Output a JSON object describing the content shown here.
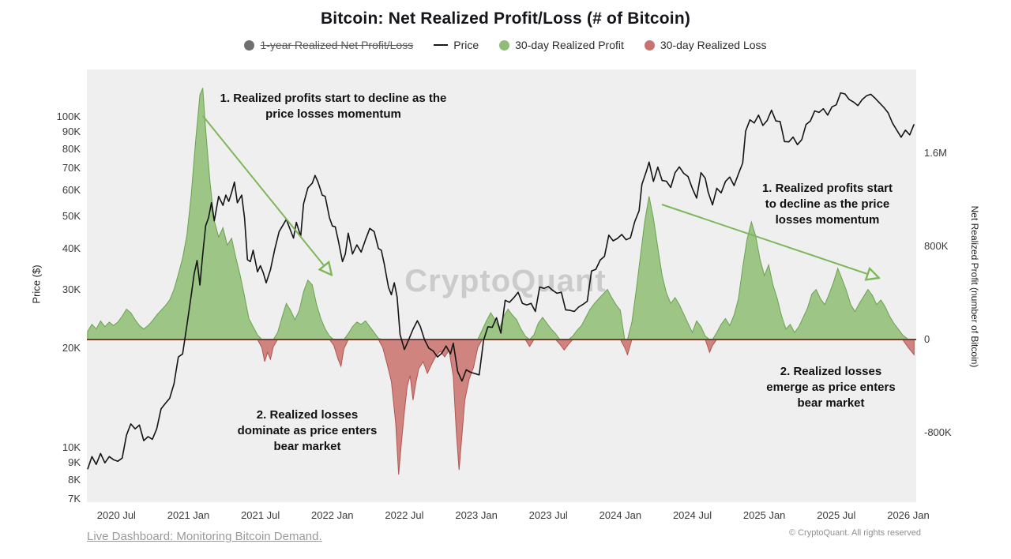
{
  "title": "Bitcoin: Net Realized Profit/Loss (# of Bitcoin)",
  "legend": [
    {
      "label": "1-year Realized Net Profit/Loss",
      "marker": "circle",
      "color": "#6f6f6f",
      "strikethrough": true
    },
    {
      "label": "Price",
      "marker": "line",
      "color": "#1a1a1a",
      "strikethrough": false
    },
    {
      "label": "30-day Realized Profit",
      "marker": "circle",
      "color": "#8fbd77",
      "strikethrough": false
    },
    {
      "label": "30-day Realized Loss",
      "marker": "circle",
      "color": "#c97370",
      "strikethrough": false
    }
  ],
  "watermark": "CryptoQuant",
  "annotation_arrow_color": "#7eb75a",
  "annotations": [
    {
      "id": "profit-decline-2021",
      "text": "1. Realized profits start to decline as the\nprice losses momentum"
    },
    {
      "id": "profit-decline-2025",
      "text": "1. Realized profits start\nto decline as the price\nlosses momentum"
    },
    {
      "id": "losses-2022",
      "text": "2. Realized losses\ndominate as price enters\nbear market"
    },
    {
      "id": "losses-2025",
      "text": "2. Realized losses\nemerge as price enters\nbear market"
    }
  ],
  "footer": {
    "link": "Live Dashboard: Monitoring Bitcoin Demand.",
    "copyright": "© CryptoQuant. All rights reserved"
  },
  "chart_data": {
    "type": "area",
    "title": "Bitcoin: Net Realized Profit/Loss (# of Bitcoin)",
    "grid": false,
    "legend_position": "top",
    "plot_background": "#efefef",
    "zero_line_color": "#7a3b36",
    "x_axis": {
      "range": [
        2020.295,
        2026.055
      ],
      "ticks": [
        {
          "value": 2020.5,
          "label": "2020 Jul"
        },
        {
          "value": 2021.0,
          "label": "2021 Jan"
        },
        {
          "value": 2021.5,
          "label": "2021 Jul"
        },
        {
          "value": 2022.0,
          "label": "2022 Jan"
        },
        {
          "value": 2022.5,
          "label": "2022 Jul"
        },
        {
          "value": 2023.0,
          "label": "2023 Jan"
        },
        {
          "value": 2023.5,
          "label": "2023 Jul"
        },
        {
          "value": 2024.0,
          "label": "2024 Jan"
        },
        {
          "value": 2024.5,
          "label": "2024 Jul"
        },
        {
          "value": 2025.0,
          "label": "2025 Jan"
        },
        {
          "value": 2025.5,
          "label": "2025 Jul"
        },
        {
          "value": 2026.0,
          "label": "2026 Jan"
        }
      ]
    },
    "left_axis": {
      "label": "Price ($)",
      "scale": "log",
      "units": "thousand USD",
      "range": [
        7,
        135
      ],
      "ticks": [
        {
          "value": 100,
          "label": "100K"
        },
        {
          "value": 90,
          "label": "90K"
        },
        {
          "value": 80,
          "label": "80K"
        },
        {
          "value": 70,
          "label": "70K"
        },
        {
          "value": 60,
          "label": "60K"
        },
        {
          "value": 50,
          "label": "50K"
        },
        {
          "value": 40,
          "label": "40K"
        },
        {
          "value": 30,
          "label": "30K"
        },
        {
          "value": 20,
          "label": "20K"
        },
        {
          "value": 10,
          "label": "10K"
        },
        {
          "value": 9,
          "label": "9K"
        },
        {
          "value": 8,
          "label": "8K"
        },
        {
          "value": 7,
          "label": "7K"
        }
      ]
    },
    "right_axis": {
      "label": "Net Realized Profit (number of Bitcoin)",
      "scale": "linear",
      "units": "thousand BTC",
      "range": [
        -1400,
        2320
      ],
      "ticks": [
        {
          "value": 1600,
          "label": "1.6M"
        },
        {
          "value": 800,
          "label": "800K"
        },
        {
          "value": 0,
          "label": "0"
        },
        {
          "value": -800,
          "label": "-800K"
        }
      ]
    },
    "series": [
      {
        "name": "Price",
        "render": "line",
        "axis": "left",
        "color": "#141414",
        "x": [
          2020.3,
          2020.33,
          2020.36,
          2020.39,
          2020.42,
          2020.45,
          2020.48,
          2020.51,
          2020.54,
          2020.57,
          2020.6,
          2020.63,
          2020.66,
          2020.69,
          2020.72,
          2020.75,
          2020.78,
          2020.81,
          2020.84,
          2020.87,
          2020.9,
          2020.93,
          2020.96,
          2020.99,
          2021.02,
          2021.04,
          2021.06,
          2021.08,
          2021.1,
          2021.12,
          2021.14,
          2021.16,
          2021.18,
          2021.21,
          2021.24,
          2021.26,
          2021.28,
          2021.3,
          2021.32,
          2021.34,
          2021.37,
          2021.39,
          2021.41,
          2021.43,
          2021.45,
          2021.48,
          2021.5,
          2021.52,
          2021.54,
          2021.57,
          2021.6,
          2021.63,
          2021.66,
          2021.68,
          2021.7,
          2021.73,
          2021.75,
          2021.78,
          2021.8,
          2021.83,
          2021.86,
          2021.88,
          2021.9,
          2021.93,
          2021.95,
          2021.98,
          2022.0,
          2022.02,
          2022.04,
          2022.07,
          2022.09,
          2022.11,
          2022.14,
          2022.17,
          2022.2,
          2022.23,
          2022.26,
          2022.29,
          2022.32,
          2022.34,
          2022.36,
          2022.39,
          2022.41,
          2022.43,
          2022.45,
          2022.47,
          2022.5,
          2022.53,
          2022.56,
          2022.59,
          2022.61,
          2022.64,
          2022.67,
          2022.7,
          2022.73,
          2022.76,
          2022.79,
          2022.82,
          2022.84,
          2022.87,
          2022.9,
          2022.93,
          2022.96,
          2023.0,
          2023.02,
          2023.05,
          2023.08,
          2023.11,
          2023.14,
          2023.17,
          2023.2,
          2023.23,
          2023.26,
          2023.29,
          2023.32,
          2023.35,
          2023.38,
          2023.41,
          2023.44,
          2023.47,
          2023.5,
          2023.53,
          2023.56,
          2023.59,
          2023.62,
          2023.65,
          2023.68,
          2023.71,
          2023.74,
          2023.77,
          2023.8,
          2023.83,
          2023.86,
          2023.89,
          2023.92,
          2023.95,
          2023.98,
          2024.01,
          2024.04,
          2024.07,
          2024.1,
          2024.13,
          2024.15,
          2024.18,
          2024.2,
          2024.23,
          2024.26,
          2024.29,
          2024.32,
          2024.35,
          2024.38,
          2024.41,
          2024.44,
          2024.47,
          2024.5,
          2024.53,
          2024.56,
          2024.59,
          2024.61,
          2024.64,
          2024.67,
          2024.7,
          2024.73,
          2024.76,
          2024.79,
          2024.82,
          2024.85,
          2024.87,
          2024.9,
          2024.93,
          2024.96,
          2024.99,
          2025.02,
          2025.05,
          2025.08,
          2025.11,
          2025.14,
          2025.17,
          2025.2,
          2025.23,
          2025.26,
          2025.29,
          2025.32,
          2025.35,
          2025.38,
          2025.41,
          2025.44,
          2025.47,
          2025.5,
          2025.53,
          2025.56,
          2025.59,
          2025.62,
          2025.65,
          2025.68,
          2025.71,
          2025.74,
          2025.77,
          2025.8,
          2025.83,
          2025.86,
          2025.89,
          2025.92,
          2025.95,
          2025.98,
          2026.01,
          2026.04
        ],
        "y": [
          8.6,
          9.4,
          8.9,
          9.6,
          9.0,
          9.4,
          9.2,
          9.1,
          9.3,
          10.9,
          11.8,
          11.4,
          11.7,
          10.5,
          10.8,
          10.6,
          11.4,
          13.1,
          13.6,
          14.1,
          15.6,
          18.8,
          19.2,
          23.5,
          29.0,
          33.5,
          36.8,
          31.0,
          38.5,
          46.9,
          49.5,
          55.0,
          48.5,
          57.5,
          54.0,
          58.0,
          55.5,
          59.0,
          63.5,
          55.0,
          58.0,
          49.5,
          37.0,
          36.5,
          39.5,
          34.0,
          35.5,
          33.8,
          31.5,
          34.5,
          39.8,
          45.0,
          47.3,
          49.0,
          46.5,
          43.0,
          48.0,
          43.5,
          54.5,
          61.0,
          63.0,
          66.5,
          63.5,
          58.0,
          57.5,
          49.5,
          46.8,
          46.5,
          42.5,
          36.5,
          38.5,
          44.5,
          38.5,
          41.0,
          39.0,
          42.5,
          46.0,
          45.0,
          40.0,
          39.5,
          36.0,
          30.5,
          29.0,
          31.5,
          28.5,
          22.0,
          19.8,
          21.2,
          22.8,
          24.2,
          23.3,
          21.2,
          20.0,
          19.6,
          18.8,
          19.3,
          20.3,
          19.2,
          20.7,
          17.0,
          15.9,
          17.2,
          16.9,
          16.7,
          16.6,
          21.1,
          23.2,
          23.1,
          24.7,
          22.2,
          27.9,
          27.5,
          28.4,
          29.5,
          27.3,
          27.0,
          27.3,
          25.8,
          30.6,
          30.3,
          30.7,
          29.9,
          29.3,
          29.5,
          26.1,
          26.0,
          25.8,
          26.6,
          27.1,
          27.7,
          34.2,
          34.6,
          36.9,
          37.9,
          43.9,
          42.2,
          42.9,
          44.1,
          42.5,
          43.1,
          48.2,
          52.0,
          62.5,
          68.3,
          73.0,
          63.8,
          70.5,
          64.2,
          63.9,
          61.2,
          67.8,
          70.6,
          67.5,
          66.0,
          60.8,
          56.8,
          67.8,
          65.2,
          59.2,
          54.2,
          60.8,
          58.9,
          63.8,
          65.8,
          62.0,
          67.2,
          72.5,
          90.5,
          98.0,
          95.8,
          101.2,
          94.2,
          97.5,
          104.8,
          97.2,
          96.8,
          84.2,
          84.0,
          86.9,
          82.4,
          85.3,
          94.8,
          97.2,
          104.2,
          103.1,
          105.8,
          101.2,
          107.2,
          108.8,
          118.2,
          117.3,
          112.8,
          110.8,
          108.2,
          112.8,
          115.8,
          117.0,
          113.8,
          110.2,
          106.8,
          102.8,
          95.8,
          91.2,
          86.8,
          91.2,
          88.2,
          95.0
        ]
      },
      {
        "name": "30-day Realized Net Profit/Loss",
        "render": "area",
        "axis": "right",
        "positive_color": "#95c17d",
        "positive_stroke": "#6ba24f",
        "negative_color": "#cc7b75",
        "negative_stroke": "#b35550",
        "x": [
          2020.3,
          2020.33,
          2020.36,
          2020.39,
          2020.42,
          2020.45,
          2020.48,
          2020.51,
          2020.54,
          2020.57,
          2020.6,
          2020.63,
          2020.66,
          2020.69,
          2020.72,
          2020.75,
          2020.78,
          2020.81,
          2020.84,
          2020.87,
          2020.9,
          2020.93,
          2020.96,
          2020.99,
          2021.02,
          2021.05,
          2021.08,
          2021.1,
          2021.12,
          2021.15,
          2021.18,
          2021.21,
          2021.24,
          2021.27,
          2021.3,
          2021.33,
          2021.36,
          2021.39,
          2021.42,
          2021.45,
          2021.48,
          2021.51,
          2021.53,
          2021.55,
          2021.57,
          2021.59,
          2021.62,
          2021.65,
          2021.68,
          2021.71,
          2021.74,
          2021.77,
          2021.8,
          2021.83,
          2021.86,
          2021.89,
          2021.92,
          2021.95,
          2021.98,
          2022.01,
          2022.04,
          2022.06,
          2022.08,
          2022.11,
          2022.14,
          2022.17,
          2022.2,
          2022.23,
          2022.26,
          2022.29,
          2022.32,
          2022.35,
          2022.38,
          2022.41,
          2022.44,
          2022.46,
          2022.48,
          2022.5,
          2022.52,
          2022.54,
          2022.56,
          2022.58,
          2022.6,
          2022.63,
          2022.66,
          2022.69,
          2022.72,
          2022.75,
          2022.78,
          2022.81,
          2022.84,
          2022.86,
          2022.88,
          2022.9,
          2022.92,
          2022.95,
          2022.98,
          2023.01,
          2023.04,
          2023.07,
          2023.1,
          2023.13,
          2023.16,
          2023.19,
          2023.22,
          2023.25,
          2023.28,
          2023.31,
          2023.34,
          2023.37,
          2023.4,
          2023.43,
          2023.46,
          2023.49,
          2023.52,
          2023.55,
          2023.58,
          2023.61,
          2023.64,
          2023.67,
          2023.7,
          2023.73,
          2023.76,
          2023.79,
          2023.82,
          2023.85,
          2023.88,
          2023.91,
          2023.94,
          2023.97,
          2024.0,
          2024.03,
          2024.05,
          2024.08,
          2024.11,
          2024.14,
          2024.17,
          2024.2,
          2024.23,
          2024.26,
          2024.29,
          2024.32,
          2024.35,
          2024.38,
          2024.41,
          2024.44,
          2024.47,
          2024.5,
          2024.53,
          2024.56,
          2024.59,
          2024.62,
          2024.64,
          2024.67,
          2024.7,
          2024.73,
          2024.76,
          2024.79,
          2024.82,
          2024.85,
          2024.88,
          2024.91,
          2024.94,
          2024.97,
          2025.0,
          2025.03,
          2025.06,
          2025.09,
          2025.12,
          2025.15,
          2025.18,
          2025.21,
          2025.24,
          2025.27,
          2025.3,
          2025.33,
          2025.36,
          2025.39,
          2025.42,
          2025.45,
          2025.48,
          2025.51,
          2025.54,
          2025.57,
          2025.6,
          2025.63,
          2025.66,
          2025.69,
          2025.72,
          2025.75,
          2025.78,
          2025.81,
          2025.84,
          2025.87,
          2025.9,
          2025.93,
          2025.96,
          2026.0,
          2026.04
        ],
        "y": [
          70,
          130,
          90,
          160,
          110,
          150,
          120,
          150,
          200,
          260,
          230,
          170,
          120,
          90,
          120,
          160,
          210,
          250,
          290,
          340,
          430,
          560,
          700,
          900,
          1250,
          1700,
          2100,
          2160,
          1800,
          1350,
          1020,
          880,
          960,
          810,
          870,
          700,
          550,
          370,
          180,
          110,
          40,
          -70,
          -190,
          -110,
          -170,
          -60,
          60,
          190,
          310,
          250,
          170,
          250,
          410,
          510,
          470,
          300,
          180,
          90,
          30,
          -50,
          -170,
          -230,
          -80,
          50,
          110,
          150,
          130,
          160,
          110,
          60,
          10,
          -70,
          -210,
          -360,
          -720,
          -1160,
          -880,
          -620,
          -400,
          -310,
          -520,
          -370,
          -250,
          -190,
          -290,
          -210,
          -140,
          -100,
          -150,
          -90,
          -320,
          -780,
          -1120,
          -820,
          -520,
          -340,
          -240,
          -70,
          80,
          160,
          230,
          170,
          90,
          200,
          260,
          210,
          170,
          90,
          30,
          -60,
          40,
          140,
          190,
          140,
          90,
          50,
          -40,
          -90,
          -40,
          30,
          80,
          120,
          190,
          260,
          310,
          350,
          390,
          430,
          360,
          300,
          250,
          -70,
          -130,
          150,
          420,
          720,
          1020,
          1230,
          1040,
          790,
          550,
          400,
          310,
          360,
          300,
          220,
          140,
          60,
          160,
          110,
          30,
          -110,
          -50,
          60,
          130,
          180,
          120,
          210,
          350,
          620,
          860,
          1010,
          890,
          690,
          550,
          640,
          470,
          350,
          200,
          90,
          130,
          60,
          110,
          190,
          270,
          390,
          430,
          350,
          300,
          390,
          490,
          610,
          520,
          420,
          300,
          240,
          310,
          370,
          430,
          380,
          300,
          340,
          280,
          200,
          140,
          90,
          40,
          -70,
          -130
        ]
      }
    ]
  }
}
